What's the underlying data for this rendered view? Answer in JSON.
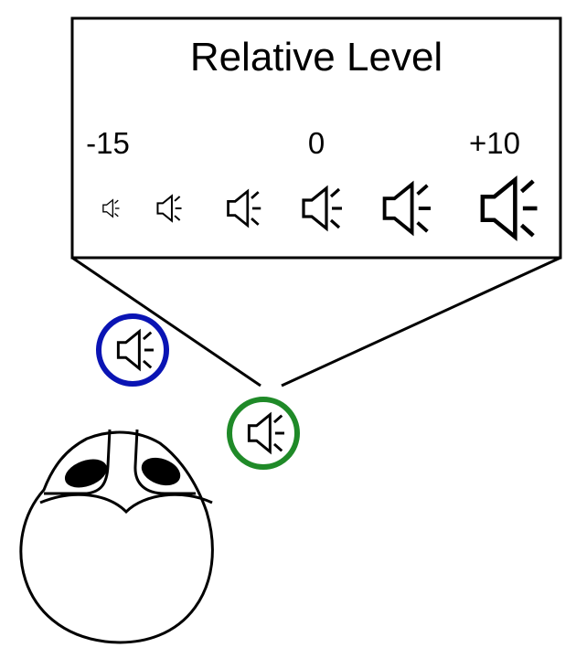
{
  "panel": {
    "title": "Relative Level",
    "level_labels": {
      "min": "-15",
      "mid": "0",
      "max": "+10"
    },
    "speaker_levels": 6
  },
  "icons": {
    "level_icon": "speaker-icon",
    "source_icon": "speaker-icon",
    "listener_icon": "head-icon"
  },
  "colors": {
    "source_a_ring": "#0a14b4",
    "source_b_ring": "#1f8a28",
    "line": "#000000",
    "ear_fill": "#000000"
  }
}
